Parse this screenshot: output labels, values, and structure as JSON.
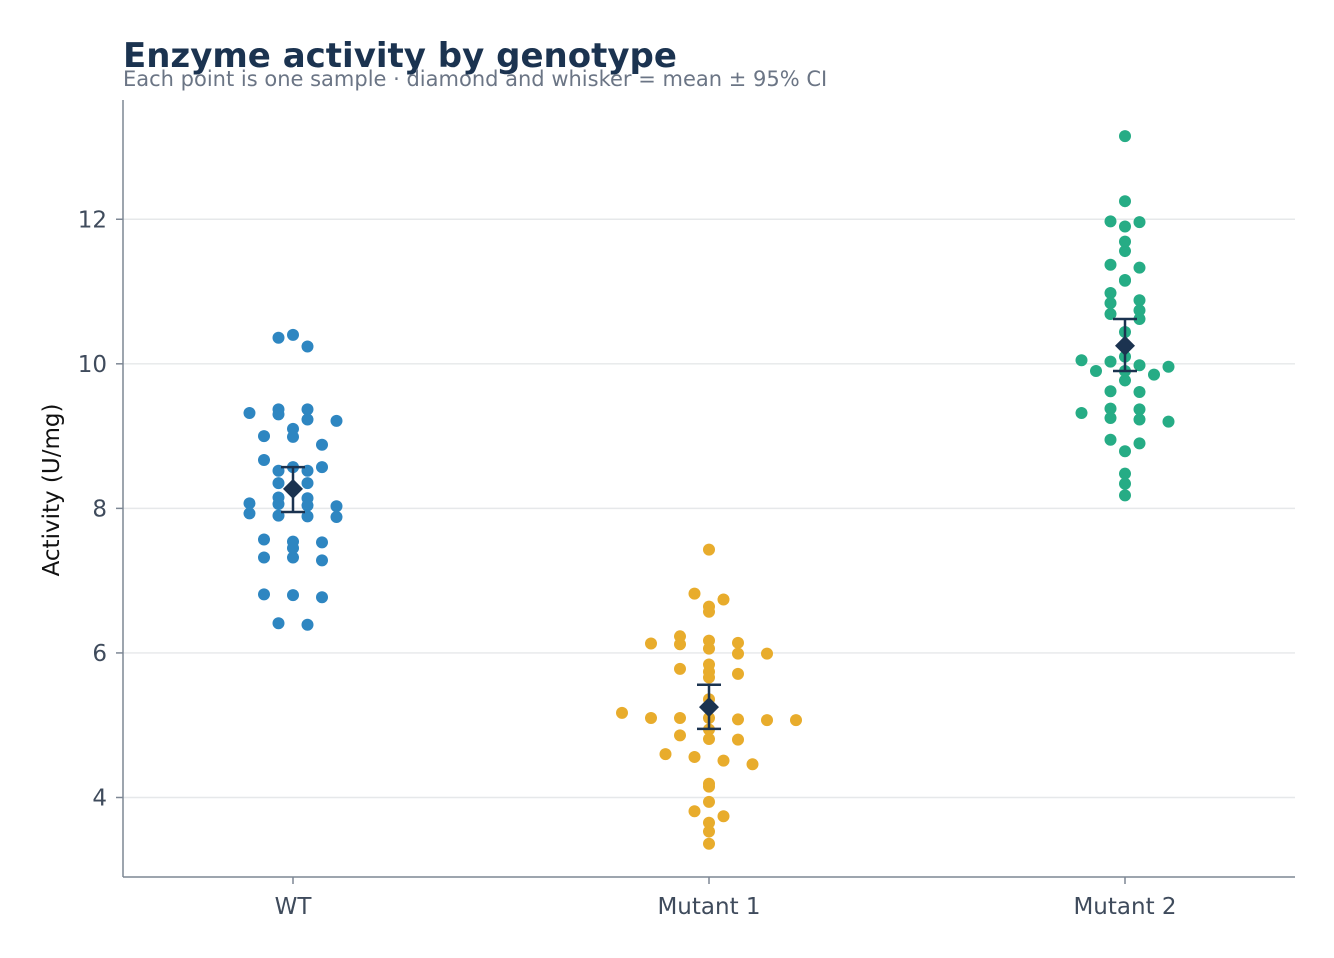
{
  "chart_data": {
    "type": "scatter",
    "title": "Enzyme activity by genotype",
    "subtitle": "Each point is one sample · diamond and whisker = mean ± 95% CI",
    "xlabel": "",
    "ylabel": "Activity (U/mg)",
    "ylim": [
      2.9,
      13.65
    ],
    "yticks": [
      4,
      6,
      8,
      10,
      12
    ],
    "grid": "horizontal",
    "categories": [
      "WT",
      "Mutant 1",
      "Mutant 2"
    ],
    "series": [
      {
        "category": "WT",
        "color": "#2e86c1",
        "mean": 8.27,
        "ci": [
          7.95,
          8.57
        ],
        "values": [
          10.4,
          10.24,
          10.36,
          9.23,
          9.1,
          8.99,
          9.37,
          9.32,
          9.37,
          9.0,
          9.21,
          9.3,
          8.52,
          8.35,
          8.67,
          8.57,
          8.88,
          8.35,
          8.52,
          8.57,
          8.03,
          7.9,
          8.15,
          7.88,
          8.07,
          8.06,
          8.14,
          7.89,
          7.93,
          8.04,
          7.32,
          7.28,
          7.54,
          7.53,
          7.57,
          7.32,
          7.45,
          6.8,
          6.77,
          6.81,
          6.41,
          6.39
        ]
      },
      {
        "category": "Mutant 1",
        "color": "#e8ac2c",
        "mean": 5.25,
        "ci": [
          4.95,
          5.56
        ],
        "values": [
          7.43,
          6.74,
          6.57,
          6.64,
          6.82,
          6.14,
          6.12,
          6.23,
          6.13,
          6.17,
          5.99,
          5.84,
          5.78,
          5.99,
          6.06,
          5.71,
          5.66,
          5.74,
          5.36,
          5.07,
          5.1,
          5.1,
          5.07,
          5.1,
          5.17,
          5.08,
          4.86,
          4.8,
          4.94,
          4.81,
          4.56,
          4.51,
          4.6,
          4.46,
          4.19,
          4.15,
          3.94,
          3.74,
          3.81,
          3.65,
          3.53,
          3.36
        ]
      },
      {
        "category": "Mutant 2",
        "color": "#26ac85",
        "mean": 10.25,
        "ci": [
          9.9,
          10.62
        ],
        "values": [
          13.15,
          12.25,
          11.97,
          11.9,
          11.96,
          11.69,
          11.56,
          11.37,
          11.16,
          11.33,
          10.98,
          11.15,
          10.84,
          10.88,
          10.74,
          10.69,
          10.62,
          10.44,
          10.24,
          10.05,
          9.98,
          10.03,
          10.1,
          9.96,
          9.9,
          9.77,
          9.61,
          9.62,
          9.85,
          9.9,
          9.37,
          9.32,
          9.38,
          9.23,
          9.2,
          9.25,
          8.95,
          8.9,
          8.79,
          8.48,
          8.34,
          8.18
        ]
      }
    ]
  },
  "colors": {
    "mean_marker": "#1b3350"
  }
}
